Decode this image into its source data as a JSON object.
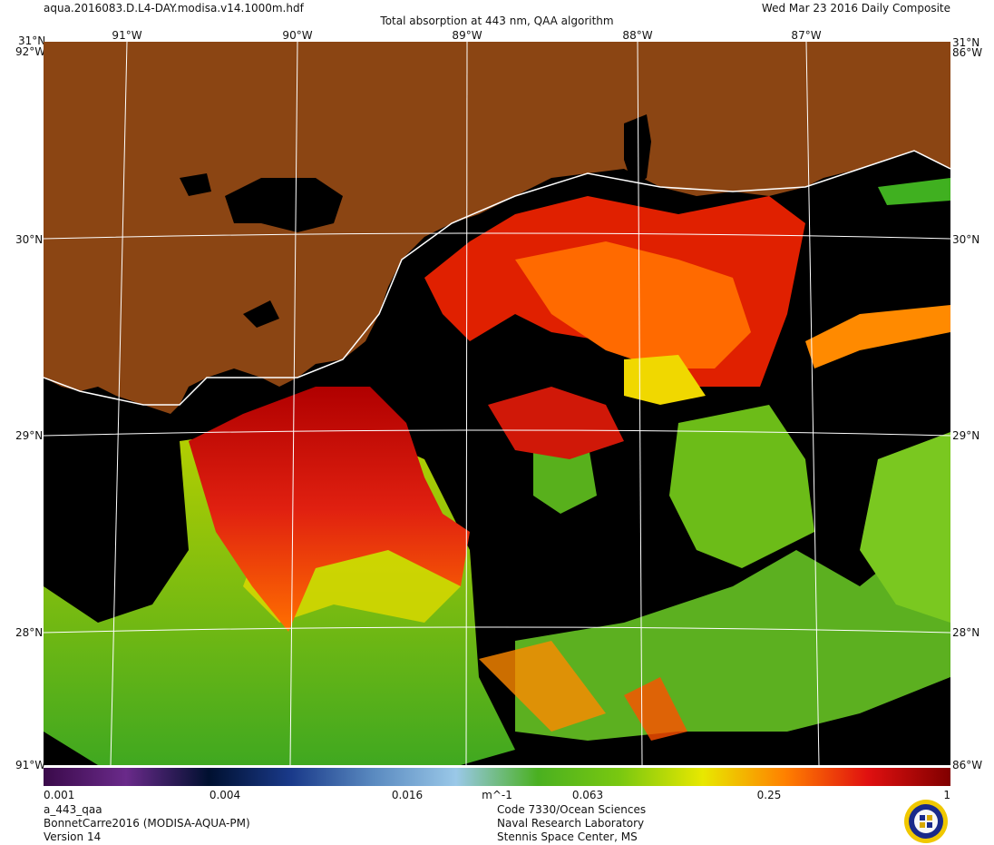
{
  "header": {
    "filename": "aqua.2016083.D.L4-DAY.modisa.v14.1000m.hdf",
    "title": "Total absorption at 443 nm, QAA algorithm",
    "date": "Wed Mar 23 2016 Daily Composite"
  },
  "map": {
    "top_lon_labels": [
      "91°W",
      "90°W",
      "89°W",
      "88°W",
      "87°W"
    ],
    "lat_labels": [
      "31°N",
      "30°N",
      "29°N",
      "28°N"
    ],
    "corner_labels": {
      "top_left_lat": "31°N",
      "top_left_lon": "92°W",
      "top_right_lat": "31°N",
      "top_right_lon": "86°W",
      "bottom_left": "91°W",
      "bottom_right": "86°W"
    },
    "colors": {
      "land": "#8b4513",
      "no_data": "#000000",
      "coastline": "#ffffff",
      "grid": "#ffffff"
    }
  },
  "colorbar": {
    "ticks": [
      "0.001",
      "0.004",
      "0.016",
      "0.063",
      "0.25",
      "1"
    ],
    "unit": "m^-1",
    "scale": "log",
    "range": [
      0.001,
      1
    ],
    "colors": [
      "#3a0a4a",
      "#6a2a8a",
      "#001030",
      "#1a3a8a",
      "#5a8ac0",
      "#9ac8e8",
      "#4ab020",
      "#7ac810",
      "#e8e800",
      "#ff8000",
      "#e01010",
      "#800000"
    ]
  },
  "footer": {
    "left": [
      "a_443_qaa",
      "BonnetCarre2016 (MODISA-AQUA-PM)",
      "Version 14"
    ],
    "center": [
      "Code 7330/Ocean Sciences",
      "Naval Research Laboratory",
      "Stennis Space Center, MS"
    ],
    "logo": "nrl-seal"
  }
}
